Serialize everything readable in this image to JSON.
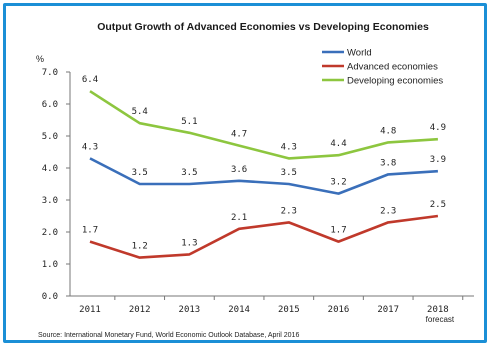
{
  "chart_data": {
    "type": "line",
    "title": "Output Growth of Advanced Economies vs Developing Economies",
    "ylabel": "%",
    "xlabel": "",
    "ylim": [
      0,
      7
    ],
    "yticks": [
      "0.0",
      "1.0",
      "2.0",
      "3.0",
      "4.0",
      "5.0",
      "6.0",
      "7.0"
    ],
    "categories": [
      "2011",
      "2012",
      "2013",
      "2014",
      "2015",
      "2016",
      "2017",
      "2018"
    ],
    "x_annotation": "forecast",
    "series": [
      {
        "name": "World",
        "color": "#3a6fba",
        "values": [
          4.3,
          3.5,
          3.5,
          3.6,
          3.5,
          3.2,
          3.8,
          3.9
        ],
        "labels": [
          "4.3",
          "3.5",
          "3.5",
          "3.6",
          "3.5",
          "3.2",
          "3.8",
          "3.9"
        ]
      },
      {
        "name": "Advanced economies",
        "color": "#c0392b",
        "values": [
          1.7,
          1.2,
          1.3,
          2.1,
          2.3,
          1.7,
          2.3,
          2.5
        ],
        "labels": [
          "1.7",
          "1.2",
          "1.3",
          "2.1",
          "2.3",
          "1.7",
          "2.3",
          "2.5"
        ]
      },
      {
        "name": "Developing economies",
        "color": "#8dc63f",
        "values": [
          6.4,
          5.4,
          5.1,
          4.7,
          4.3,
          4.4,
          4.8,
          4.9
        ],
        "labels": [
          "6.4",
          "5.4",
          "5.1",
          "4.7",
          "4.3",
          "4.4",
          "4.8",
          "4.9"
        ]
      }
    ],
    "legend_position": "top-right",
    "grid": false,
    "source": "Source: International Monetary Fund, World Economic Outlook Database, April 2016"
  }
}
